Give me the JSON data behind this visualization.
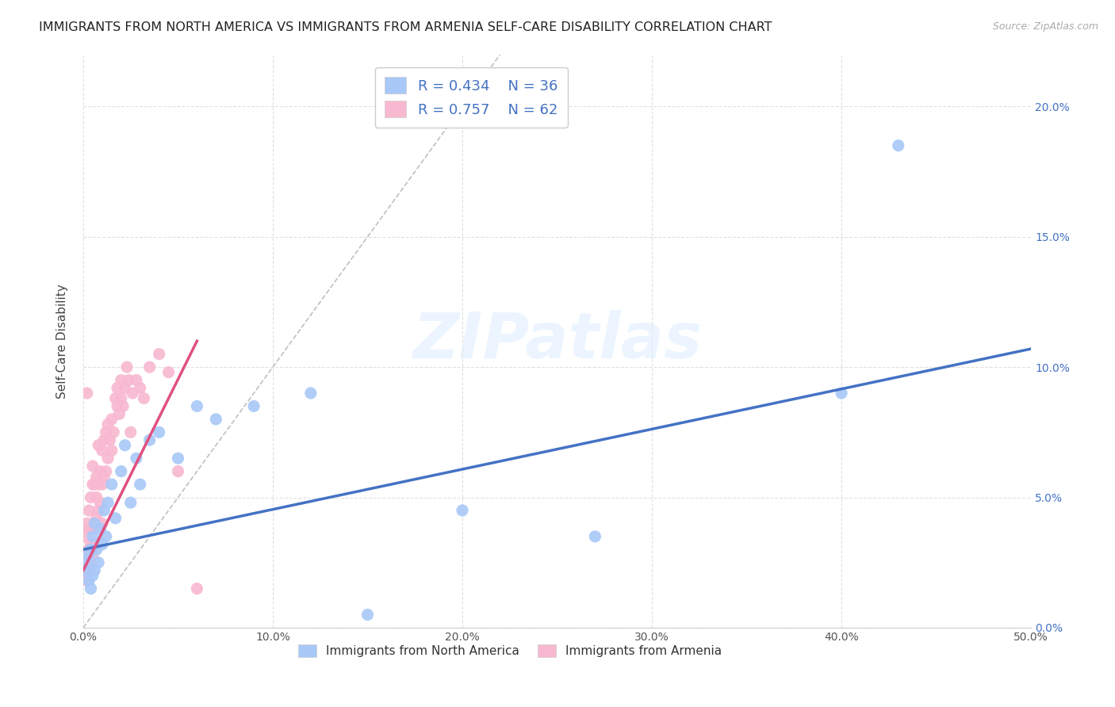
{
  "title": "IMMIGRANTS FROM NORTH AMERICA VS IMMIGRANTS FROM ARMENIA SELF-CARE DISABILITY CORRELATION CHART",
  "source": "Source: ZipAtlas.com",
  "ylabel": "Self-Care Disability",
  "xlim": [
    0,
    0.5
  ],
  "ylim": [
    0,
    0.22
  ],
  "x_ticks": [
    0.0,
    0.1,
    0.2,
    0.3,
    0.4,
    0.5
  ],
  "y_ticks": [
    0.0,
    0.05,
    0.1,
    0.15,
    0.2
  ],
  "blue_color": "#a8c8f8",
  "blue_line_color": "#4472c4",
  "pink_color": "#f8b8d0",
  "pink_line_color": "#e05080",
  "R_blue": 0.434,
  "N_blue": 36,
  "R_pink": 0.757,
  "N_pink": 62,
  "legend_label_blue": "Immigrants from North America",
  "legend_label_pink": "Immigrants from Armenia",
  "watermark": "ZIPatlas",
  "blue_scatter_x": [
    0.001,
    0.002,
    0.003,
    0.003,
    0.004,
    0.004,
    0.005,
    0.005,
    0.006,
    0.006,
    0.007,
    0.008,
    0.009,
    0.01,
    0.011,
    0.012,
    0.013,
    0.015,
    0.017,
    0.02,
    0.022,
    0.025,
    0.028,
    0.03,
    0.035,
    0.04,
    0.05,
    0.06,
    0.07,
    0.09,
    0.12,
    0.15,
    0.2,
    0.27,
    0.4,
    0.43
  ],
  "blue_scatter_y": [
    0.022,
    0.025,
    0.018,
    0.028,
    0.015,
    0.03,
    0.02,
    0.035,
    0.022,
    0.04,
    0.03,
    0.025,
    0.038,
    0.032,
    0.045,
    0.035,
    0.048,
    0.055,
    0.042,
    0.06,
    0.07,
    0.048,
    0.065,
    0.055,
    0.072,
    0.075,
    0.065,
    0.085,
    0.08,
    0.085,
    0.09,
    0.005,
    0.045,
    0.035,
    0.09,
    0.185
  ],
  "pink_scatter_x": [
    0.001,
    0.001,
    0.001,
    0.002,
    0.002,
    0.002,
    0.003,
    0.003,
    0.003,
    0.003,
    0.004,
    0.004,
    0.004,
    0.005,
    0.005,
    0.005,
    0.005,
    0.006,
    0.006,
    0.006,
    0.007,
    0.007,
    0.007,
    0.008,
    0.008,
    0.008,
    0.009,
    0.009,
    0.01,
    0.01,
    0.01,
    0.011,
    0.011,
    0.012,
    0.012,
    0.013,
    0.013,
    0.014,
    0.015,
    0.015,
    0.016,
    0.017,
    0.018,
    0.018,
    0.019,
    0.02,
    0.02,
    0.021,
    0.022,
    0.023,
    0.024,
    0.025,
    0.026,
    0.028,
    0.03,
    0.032,
    0.035,
    0.04,
    0.045,
    0.05,
    0.06,
    0.002
  ],
  "pink_scatter_y": [
    0.02,
    0.028,
    0.035,
    0.018,
    0.025,
    0.04,
    0.022,
    0.03,
    0.038,
    0.045,
    0.025,
    0.032,
    0.05,
    0.028,
    0.038,
    0.055,
    0.062,
    0.032,
    0.04,
    0.055,
    0.042,
    0.05,
    0.058,
    0.045,
    0.055,
    0.07,
    0.048,
    0.06,
    0.04,
    0.055,
    0.068,
    0.058,
    0.072,
    0.06,
    0.075,
    0.065,
    0.078,
    0.072,
    0.068,
    0.08,
    0.075,
    0.088,
    0.085,
    0.092,
    0.082,
    0.088,
    0.095,
    0.085,
    0.092,
    0.1,
    0.095,
    0.075,
    0.09,
    0.095,
    0.092,
    0.088,
    0.1,
    0.105,
    0.098,
    0.06,
    0.015,
    0.09
  ],
  "blue_line_x": [
    0.0,
    0.5
  ],
  "blue_line_y": [
    0.03,
    0.107
  ],
  "pink_line_x": [
    0.0,
    0.06
  ],
  "pink_line_y": [
    0.022,
    0.11
  ],
  "diag_line_x": [
    0.0,
    0.22
  ],
  "diag_line_y": [
    0.0,
    0.22
  ]
}
